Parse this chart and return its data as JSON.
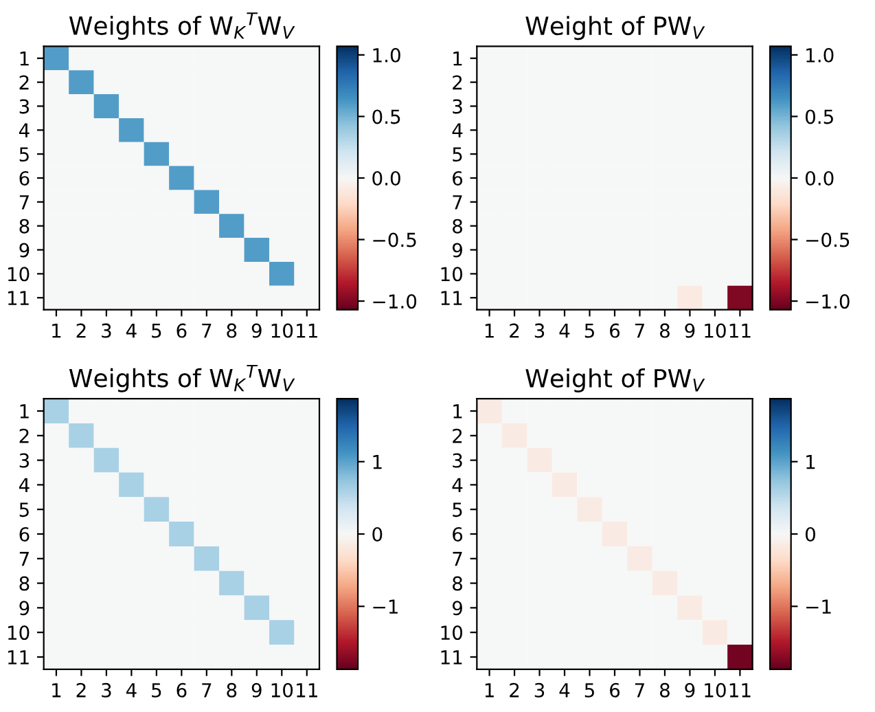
{
  "chart_data": [
    {
      "type": "heatmap",
      "title": "Weights of W$_{K}$$^{T}$W$_{V}$",
      "categories": [
        "1",
        "2",
        "3",
        "4",
        "5",
        "6",
        "7",
        "8",
        "9",
        "10",
        "11"
      ],
      "y_categories": [
        "1",
        "2",
        "3",
        "4",
        "5",
        "6",
        "7",
        "8",
        "9",
        "10",
        "11"
      ],
      "clim": [
        -1.07,
        1.07
      ],
      "cticks": [
        {
          "value": 1.0,
          "label": "1.0"
        },
        {
          "value": 0.5,
          "label": "0.5"
        },
        {
          "value": 0.0,
          "label": "0.0"
        },
        {
          "value": -0.5,
          "label": "−0.5"
        },
        {
          "value": -1.0,
          "label": "−1.0"
        }
      ],
      "cells": [
        [
          0.6,
          0,
          0,
          0,
          0,
          0,
          0,
          0,
          0,
          0,
          0
        ],
        [
          0,
          0.6,
          0,
          0,
          0,
          0,
          0,
          0,
          0,
          0,
          0
        ],
        [
          0,
          0,
          0.6,
          0,
          0,
          0,
          0,
          0,
          0,
          0,
          0
        ],
        [
          0,
          0,
          0,
          0.6,
          0,
          0,
          0,
          0,
          0,
          0,
          0
        ],
        [
          0,
          0,
          0,
          0,
          0.6,
          0,
          0,
          0,
          0,
          0,
          0
        ],
        [
          0,
          0,
          0,
          0,
          0,
          0.6,
          0,
          0,
          0,
          0,
          0
        ],
        [
          0,
          0,
          0,
          0,
          0,
          0,
          0.6,
          0,
          0,
          0,
          0
        ],
        [
          0,
          0,
          0,
          0,
          0,
          0,
          0,
          0.6,
          0,
          0,
          0
        ],
        [
          0,
          0,
          0,
          0,
          0,
          0,
          0,
          0,
          0.6,
          0,
          0
        ],
        [
          0,
          0,
          0,
          0,
          0,
          0,
          0,
          0,
          0,
          0.6,
          0
        ],
        [
          0,
          0,
          0,
          0,
          0,
          0,
          0,
          0,
          0,
          0,
          0
        ]
      ]
    },
    {
      "type": "heatmap",
      "title": "Weight of PW$_{V}$",
      "categories": [
        "1",
        "2",
        "3",
        "4",
        "5",
        "6",
        "7",
        "8",
        "9",
        "10",
        "11"
      ],
      "y_categories": [
        "1",
        "2",
        "3",
        "4",
        "5",
        "6",
        "7",
        "8",
        "9",
        "10",
        "11"
      ],
      "clim": [
        -1.07,
        1.07
      ],
      "cticks": [
        {
          "value": 1.0,
          "label": "1.0"
        },
        {
          "value": 0.5,
          "label": "0.5"
        },
        {
          "value": 0.0,
          "label": "0.0"
        },
        {
          "value": -0.5,
          "label": "−0.5"
        },
        {
          "value": -1.0,
          "label": "−1.0"
        }
      ],
      "cells": [
        [
          0,
          0,
          0,
          0,
          0,
          0,
          0,
          0,
          0,
          0,
          0
        ],
        [
          0,
          0,
          0,
          0,
          0,
          0,
          0,
          0,
          0,
          0,
          0
        ],
        [
          0,
          0,
          0,
          0,
          0,
          0,
          0,
          0,
          0,
          0,
          0
        ],
        [
          0,
          0,
          0,
          0,
          0,
          0,
          0,
          0,
          0,
          0,
          0
        ],
        [
          0,
          0,
          0,
          0,
          0,
          0,
          0,
          0,
          0,
          0,
          0
        ],
        [
          0,
          0,
          0,
          0,
          0,
          0,
          0,
          0,
          0,
          0,
          0
        ],
        [
          0,
          0,
          0,
          0,
          0,
          0,
          0,
          0,
          0,
          0,
          0
        ],
        [
          0,
          0,
          0,
          0,
          0,
          0,
          0,
          0,
          0,
          0,
          0
        ],
        [
          0,
          0,
          0,
          0,
          0,
          0,
          0,
          0,
          0,
          0,
          0
        ],
        [
          0,
          0,
          0,
          0,
          0,
          0,
          0,
          0,
          0,
          0,
          0
        ],
        [
          0,
          0,
          0,
          0,
          0,
          0,
          0,
          0,
          -0.1,
          0,
          -1.0
        ]
      ]
    },
    {
      "type": "heatmap",
      "title": "Weights of W$_{K}$$^{T}$W$_{V}$",
      "categories": [
        "1",
        "2",
        "3",
        "4",
        "5",
        "6",
        "7",
        "8",
        "9",
        "10",
        "11"
      ],
      "y_categories": [
        "1",
        "2",
        "3",
        "4",
        "5",
        "6",
        "7",
        "8",
        "9",
        "10",
        "11"
      ],
      "clim": [
        -1.87,
        1.87
      ],
      "cticks": [
        {
          "value": 1,
          "label": "1"
        },
        {
          "value": 0,
          "label": "0"
        },
        {
          "value": -1,
          "label": "−1"
        }
      ],
      "cells": [
        [
          0.6,
          0,
          0,
          0,
          0,
          0,
          0,
          0,
          0,
          0,
          0
        ],
        [
          0,
          0.6,
          0,
          0,
          0,
          0,
          0,
          0,
          0,
          0,
          0
        ],
        [
          0,
          0,
          0.6,
          0,
          0,
          0,
          0,
          0,
          0,
          0,
          0
        ],
        [
          0,
          0,
          0,
          0.6,
          0,
          0,
          0,
          0,
          0,
          0,
          0
        ],
        [
          0,
          0,
          0,
          0,
          0.6,
          0,
          0,
          0,
          0,
          0,
          0
        ],
        [
          0,
          0,
          0,
          0,
          0,
          0.6,
          0,
          0,
          0,
          0,
          0
        ],
        [
          0,
          0,
          0,
          0,
          0,
          0,
          0.6,
          0,
          0,
          0,
          0
        ],
        [
          0,
          0,
          0,
          0,
          0,
          0,
          0,
          0.6,
          0,
          0,
          0
        ],
        [
          0,
          0,
          0,
          0,
          0,
          0,
          0,
          0,
          0.6,
          0,
          0
        ],
        [
          0,
          0,
          0,
          0,
          0,
          0,
          0,
          0,
          0,
          0.6,
          0
        ],
        [
          0,
          0,
          0,
          0,
          0,
          0,
          0,
          0,
          0,
          0,
          0
        ]
      ]
    },
    {
      "type": "heatmap",
      "title": "Weight of PW$_{V}$",
      "categories": [
        "1",
        "2",
        "3",
        "4",
        "5",
        "6",
        "7",
        "8",
        "9",
        "10",
        "11"
      ],
      "y_categories": [
        "1",
        "2",
        "3",
        "4",
        "5",
        "6",
        "7",
        "8",
        "9",
        "10",
        "11"
      ],
      "clim": [
        -1.87,
        1.87
      ],
      "cticks": [
        {
          "value": 1,
          "label": "1"
        },
        {
          "value": 0,
          "label": "0"
        },
        {
          "value": -1,
          "label": "−1"
        }
      ],
      "cells": [
        [
          -0.15,
          0,
          0,
          0,
          0,
          0,
          0,
          0,
          0,
          0,
          0
        ],
        [
          0,
          -0.15,
          0,
          0,
          0,
          0,
          0,
          0,
          0,
          0,
          0
        ],
        [
          0,
          0,
          -0.15,
          0,
          0,
          0,
          0,
          0,
          0,
          0,
          0
        ],
        [
          0,
          0,
          0,
          -0.15,
          0,
          0,
          0,
          0,
          0,
          0,
          0
        ],
        [
          0,
          0,
          0,
          0,
          -0.15,
          0,
          0,
          0,
          0,
          0,
          0
        ],
        [
          0,
          0,
          0,
          0,
          0,
          -0.15,
          0,
          0,
          0,
          0,
          0
        ],
        [
          0,
          0,
          0,
          0,
          0,
          0,
          -0.15,
          0,
          0,
          0,
          0
        ],
        [
          0,
          0,
          0,
          0,
          0,
          0,
          0,
          -0.15,
          0,
          0,
          0
        ],
        [
          0,
          0,
          0,
          0,
          0,
          0,
          0,
          0,
          -0.15,
          0,
          0
        ],
        [
          0,
          0,
          0,
          0,
          0,
          0,
          0,
          0,
          0,
          -0.15,
          0
        ],
        [
          0,
          0,
          0,
          0,
          0,
          0,
          0,
          0,
          0,
          0,
          -1.8
        ]
      ]
    }
  ]
}
